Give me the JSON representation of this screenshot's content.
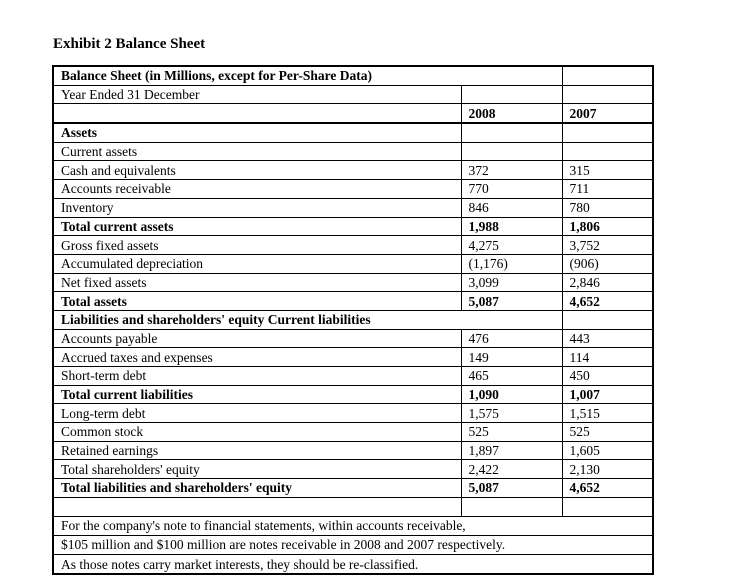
{
  "page": {
    "title": "Exhibit 2 Balance Sheet"
  },
  "table": {
    "title_row": "Balance Sheet (in Millions, except for Per-Share Data)",
    "subtitle_row": "Year Ended 31 December",
    "columns": {
      "y2008": "2008",
      "y2007": "2007"
    },
    "rows": [
      {
        "label": "Assets",
        "y2008": "",
        "y2007": ""
      },
      {
        "label": "Current assets",
        "y2008": "",
        "y2007": ""
      },
      {
        "label": "Cash and equivalents",
        "y2008": "372",
        "y2007": "315"
      },
      {
        "label": "Accounts receivable",
        "y2008": "770",
        "y2007": "711"
      },
      {
        "label": "Inventory",
        "y2008": "846",
        "y2007": "780"
      },
      {
        "label": "Total current assets",
        "y2008": "1,988",
        "y2007": "1,806"
      },
      {
        "label": "Gross fixed assets",
        "y2008": "4,275",
        "y2007": "3,752"
      },
      {
        "label": "Accumulated depreciation",
        "y2008": "(1,176)",
        "y2007": "(906)"
      },
      {
        "label": "Net fixed assets",
        "y2008": "3,099",
        "y2007": "2,846"
      },
      {
        "label": "Total assets",
        "y2008": "5,087",
        "y2007": "4,652"
      },
      {
        "label": "Liabilities and shareholders' equity Current liabilities",
        "y2008": "",
        "y2007": ""
      },
      {
        "label": "Accounts payable",
        "y2008": "476",
        "y2007": "443"
      },
      {
        "label": "Accrued taxes and expenses",
        "y2008": "149",
        "y2007": "114"
      },
      {
        "label": "Short-term debt",
        "y2008": "465",
        "y2007": "450"
      },
      {
        "label": "Total current liabilities",
        "y2008": "1,090",
        "y2007": "1,007"
      },
      {
        "label": "Long-term debt",
        "y2008": "1,575",
        "y2007": "1,515"
      },
      {
        "label": "Common stock",
        "y2008": "525",
        "y2007": "525"
      },
      {
        "label": "Retained earnings",
        "y2008": "1,897",
        "y2007": "1,605"
      },
      {
        "label": "Total shareholders' equity",
        "y2008": "2,422",
        "y2007": "2,130"
      },
      {
        "label": "Total liabilities and shareholders' equity",
        "y2008": "5,087",
        "y2007": "4,652"
      }
    ],
    "notes": [
      "For the company's note to financial statements, within accounts receivable,",
      "$105 million and $100 million are notes receivable in 2008 and 2007 respectively.",
      "As those notes carry market interests, they should be re-classified."
    ]
  }
}
